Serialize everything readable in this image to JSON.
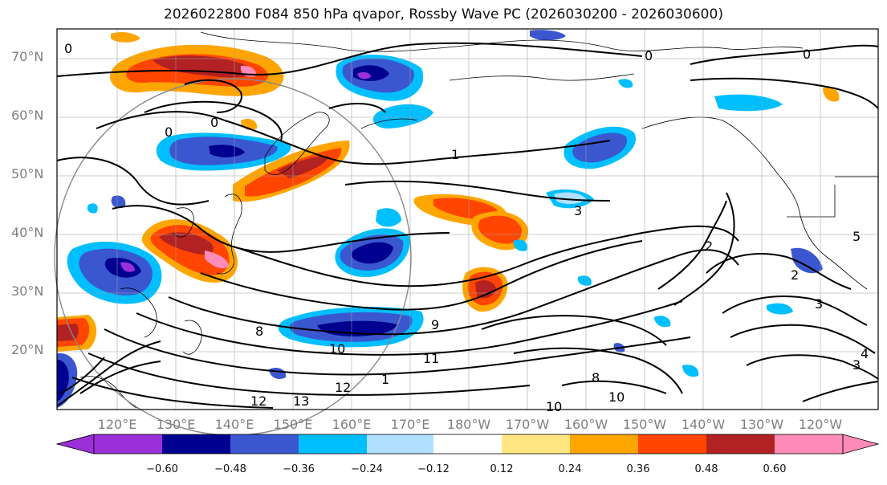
{
  "title": "2026022800 F084 850 hPa qvapor, Rossby Wave PC (2026030200 - 2026030600)",
  "lat_ticks": [
    "70°N",
    "60°N",
    "50°N",
    "40°N",
    "30°N",
    "20°N"
  ],
  "lon_ticks": [
    "120°E",
    "130°E",
    "140°E",
    "150°E",
    "160°E",
    "170°E",
    "180°W",
    "170°W",
    "160°W",
    "150°W",
    "140°W",
    "130°W",
    "120°W"
  ],
  "colorbar": {
    "ticks": [
      "−0.60",
      "−0.48",
      "−0.36",
      "−0.24",
      "−0.12",
      "0.12",
      "0.24",
      "0.36",
      "0.48",
      "0.60"
    ],
    "colors": [
      "#9b30d8",
      "#000090",
      "#3a57d0",
      "#00bfff",
      "#b0e0ff",
      "#ffffff",
      "#ffe680",
      "#ffa500",
      "#ff4500",
      "#b22222",
      "#ff8bb8"
    ]
  },
  "contour_labels": [
    "0",
    "0",
    "0",
    "0",
    "0",
    "1",
    "1",
    "2",
    "2",
    "3",
    "3",
    "3",
    "4",
    "5",
    "8",
    "8",
    "9",
    "10",
    "10",
    "10",
    "11",
    "12",
    "12",
    "13"
  ],
  "colors": {
    "land_outline": "#000000",
    "grid": "#9e9e9e",
    "contour": "#000000"
  }
}
